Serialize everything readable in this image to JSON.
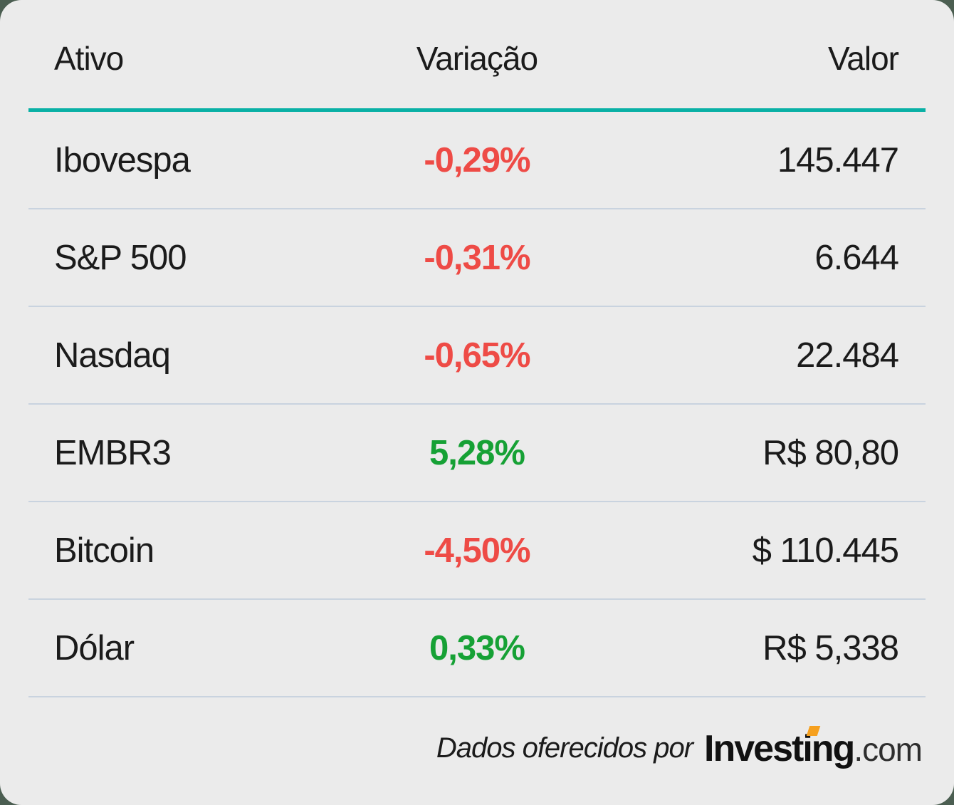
{
  "colors": {
    "page_background": "#4b5e51",
    "card_background": "#ebebeb",
    "accent_line": "#09b0a5",
    "negative": "#ee4b46",
    "positive": "#16a135",
    "divider": "#c9d3df",
    "text": "#1b1b1b",
    "logo_orange": "#f6a01e"
  },
  "table": {
    "headers": {
      "asset": "Ativo",
      "variation": "Variação",
      "value": "Valor"
    },
    "rows": [
      {
        "name": "Ibovespa",
        "variation": "-0,29%",
        "trend": "down",
        "value": "145.447"
      },
      {
        "name": "S&P 500",
        "variation": "-0,31%",
        "trend": "down",
        "value": "6.644"
      },
      {
        "name": "Nasdaq",
        "variation": "-0,65%",
        "trend": "down",
        "value": "22.484"
      },
      {
        "name": "EMBR3",
        "variation": "5,28%",
        "trend": "up",
        "value": "R$ 80,80"
      },
      {
        "name": "Bitcoin",
        "variation": "-4,50%",
        "trend": "down",
        "value": "$ 110.445"
      },
      {
        "name": "Dólar",
        "variation": "0,33%",
        "trend": "up",
        "value": "R$ 5,338"
      }
    ]
  },
  "footer": {
    "attribution": "Dados oferecidos por",
    "logo_text": "Investing",
    "logo_suffix": ".com"
  },
  "chart_data": {
    "type": "table",
    "columns": [
      "Ativo",
      "Variação",
      "Valor"
    ],
    "rows": [
      [
        "Ibovespa",
        "-0,29%",
        "145.447"
      ],
      [
        "S&P 500",
        "-0,31%",
        "6.644"
      ],
      [
        "Nasdaq",
        "-0,65%",
        "22.484"
      ],
      [
        "EMBR3",
        "5,28%",
        "R$ 80,80"
      ],
      [
        "Bitcoin",
        "-4,50%",
        "$ 110.445"
      ],
      [
        "Dólar",
        "0,33%",
        "R$ 5,338"
      ]
    ],
    "variation_numeric_pct": [
      -0.29,
      -0.31,
      -0.65,
      5.28,
      -4.5,
      0.33
    ],
    "attribution": "Dados oferecidos por Investing.com"
  }
}
